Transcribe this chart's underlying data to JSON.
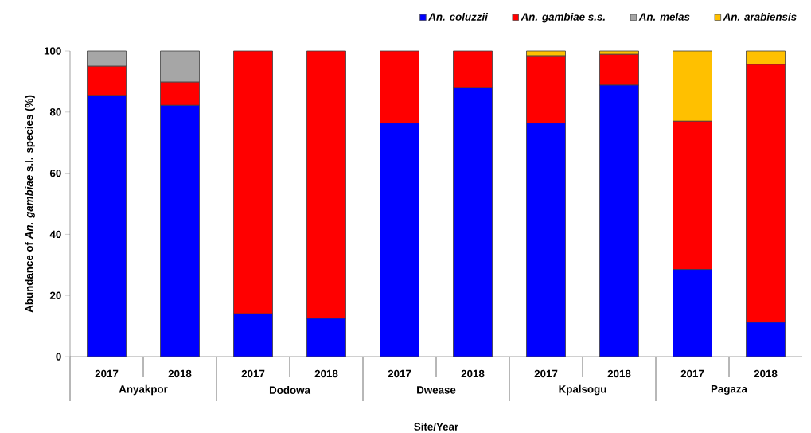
{
  "chart_data": {
    "type": "bar",
    "stacked": true,
    "xlabel": "Site/Year",
    "ylabel": "Abundance of *An. gambiae* s.l. species (%)",
    "categories": [
      "2017",
      "2018",
      "2017",
      "2018",
      "2017",
      "2018",
      "2017",
      "2018",
      "2017",
      "2018"
    ],
    "annotations": [
      "Anyakpor",
      "Dodowa",
      "Dwease",
      "Kpalsogu",
      "Pagaza"
    ],
    "series": [
      {
        "name": "An. coluzzii",
        "color": "#0000ff",
        "values": [
          85.4,
          82.2,
          14.0,
          12.5,
          76.4,
          88.0,
          76.4,
          88.8,
          28.5,
          11.2
        ]
      },
      {
        "name": "An. gambiae s.s.",
        "color": "#ff0000",
        "values": [
          9.6,
          7.6,
          86.0,
          87.5,
          23.6,
          12.0,
          22.0,
          10.1,
          48.5,
          84.4
        ]
      },
      {
        "name": "An. melas",
        "color": "#a6a6a6",
        "values": [
          5.0,
          10.2,
          0,
          0,
          0,
          0,
          0,
          0,
          0,
          0
        ]
      },
      {
        "name": "An. arabiensis",
        "color": "#ffc000",
        "values": [
          0,
          0,
          0,
          0,
          0,
          0,
          1.6,
          1.1,
          23.0,
          4.4
        ]
      }
    ],
    "ylim": [
      0,
      100
    ],
    "yticks": [
      0,
      20,
      40,
      60,
      80,
      100
    ],
    "legend": "top right",
    "grid": false
  }
}
